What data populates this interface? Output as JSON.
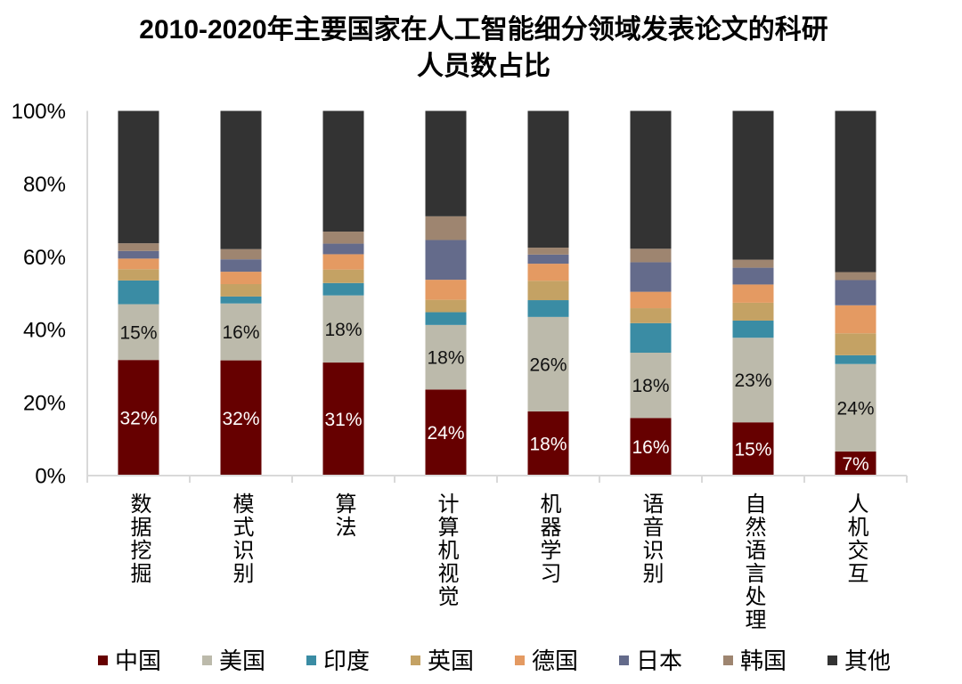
{
  "chart_data": {
    "type": "bar",
    "stacked": true,
    "normalized": true,
    "title": "2010-2020年主要国家在人工智能细分领域发表论文的科研人员数占比",
    "title_lines": [
      "2010-2020年主要国家在人工智能细分领域发表论文的科研",
      "人员数占比"
    ],
    "xlabel": "",
    "ylabel": "",
    "ylim": [
      0,
      100
    ],
    "y_ticks": [
      0,
      20,
      40,
      60,
      80,
      100
    ],
    "y_tick_labels": [
      "0%",
      "20%",
      "40%",
      "60%",
      "80%",
      "100%"
    ],
    "grid": false,
    "legend_position": "bottom",
    "categories": [
      "数据挖掘",
      "模式识别",
      "算法",
      "计算机视觉",
      "机器学习",
      "语音识别",
      "自然语言处理",
      "人机交互"
    ],
    "series": [
      {
        "name": "中国",
        "color": "#660000",
        "label_color": "#FFFFFF",
        "values": [
          31.7,
          31.6,
          31.0,
          23.6,
          17.6,
          15.8,
          14.6,
          6.6
        ],
        "data_labels": [
          "32%",
          "32%",
          "31%",
          "24%",
          "18%",
          "16%",
          "15%",
          "7%"
        ]
      },
      {
        "name": "美国",
        "color": "#BCBAAB",
        "label_color": "#111111",
        "values": [
          15.3,
          15.6,
          18.4,
          17.7,
          25.9,
          17.9,
          23.2,
          24.0
        ],
        "data_labels": [
          "15%",
          "16%",
          "18%",
          "18%",
          "26%",
          "18%",
          "23%",
          "24%"
        ]
      },
      {
        "name": "印度",
        "color": "#3A8CA4",
        "values": [
          6.5,
          1.9,
          3.4,
          3.5,
          4.6,
          8.1,
          4.7,
          2.4
        ]
      },
      {
        "name": "英国",
        "color": "#C4A264",
        "values": [
          3.1,
          3.4,
          3.7,
          3.4,
          5.3,
          4.1,
          4.9,
          6.0
        ]
      },
      {
        "name": "德国",
        "color": "#E49A62",
        "values": [
          2.9,
          3.4,
          4.2,
          5.5,
          4.7,
          4.5,
          5.0,
          7.7
        ]
      },
      {
        "name": "日本",
        "color": "#646B8B",
        "values": [
          2.1,
          3.4,
          2.9,
          10.9,
          2.5,
          8.1,
          4.6,
          6.9
        ]
      },
      {
        "name": "韩国",
        "color": "#9E8570",
        "values": [
          2.1,
          2.8,
          3.3,
          6.5,
          1.9,
          3.7,
          2.2,
          2.2
        ]
      },
      {
        "name": "其他",
        "color": "#333333",
        "values": [
          36.3,
          37.9,
          33.1,
          28.9,
          37.5,
          37.8,
          40.8,
          44.2
        ]
      }
    ]
  }
}
